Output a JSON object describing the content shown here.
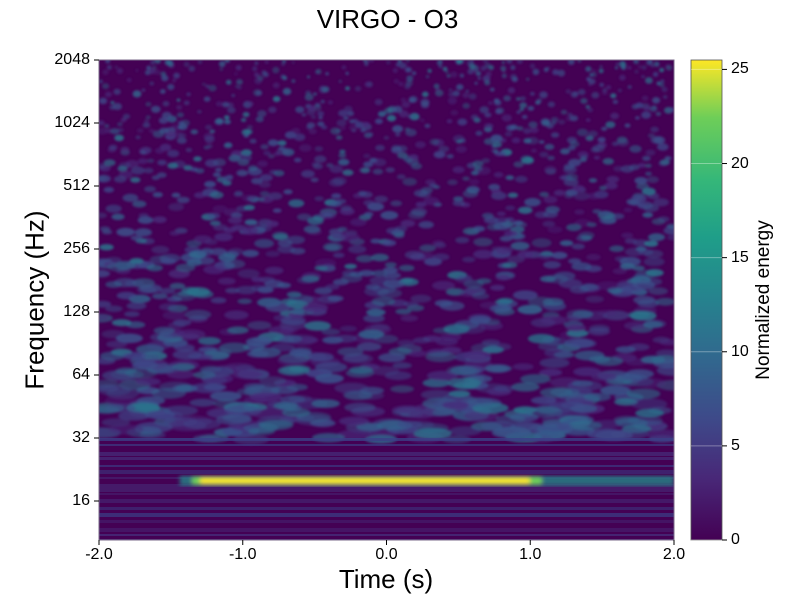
{
  "chart_data": {
    "type": "heatmap",
    "title": "VIRGO - O3",
    "xlabel": "Time (s)",
    "ylabel": "Frequency (Hz)",
    "xlim": [
      -2.0,
      2.0
    ],
    "ylim": [
      10,
      2048
    ],
    "yscale": "log2",
    "x_ticks": [
      "-2.0",
      "-1.0",
      "0.0",
      "1.0",
      "2.0"
    ],
    "x_tick_values": [
      -2.0,
      -1.0,
      0.0,
      1.0,
      2.0
    ],
    "y_ticks": [
      "2048",
      "1024",
      "512",
      "256",
      "128",
      "64",
      "32",
      "16"
    ],
    "y_tick_values": [
      2048,
      1024,
      512,
      256,
      128,
      64,
      32,
      16
    ],
    "colormap": "viridis",
    "colorbar": {
      "label": "Normalized energy",
      "range": [
        0,
        25.5
      ],
      "ticks": [
        "0",
        "5",
        "10",
        "15",
        "20",
        "25"
      ],
      "tick_values": [
        0,
        5,
        10,
        15,
        20,
        25
      ]
    },
    "feature": {
      "description": "bright horizontal band",
      "frequency_hz": 20,
      "time_range_s": [
        -1.3,
        1.0
      ],
      "peak_energy": 25.5
    },
    "grid": true
  }
}
